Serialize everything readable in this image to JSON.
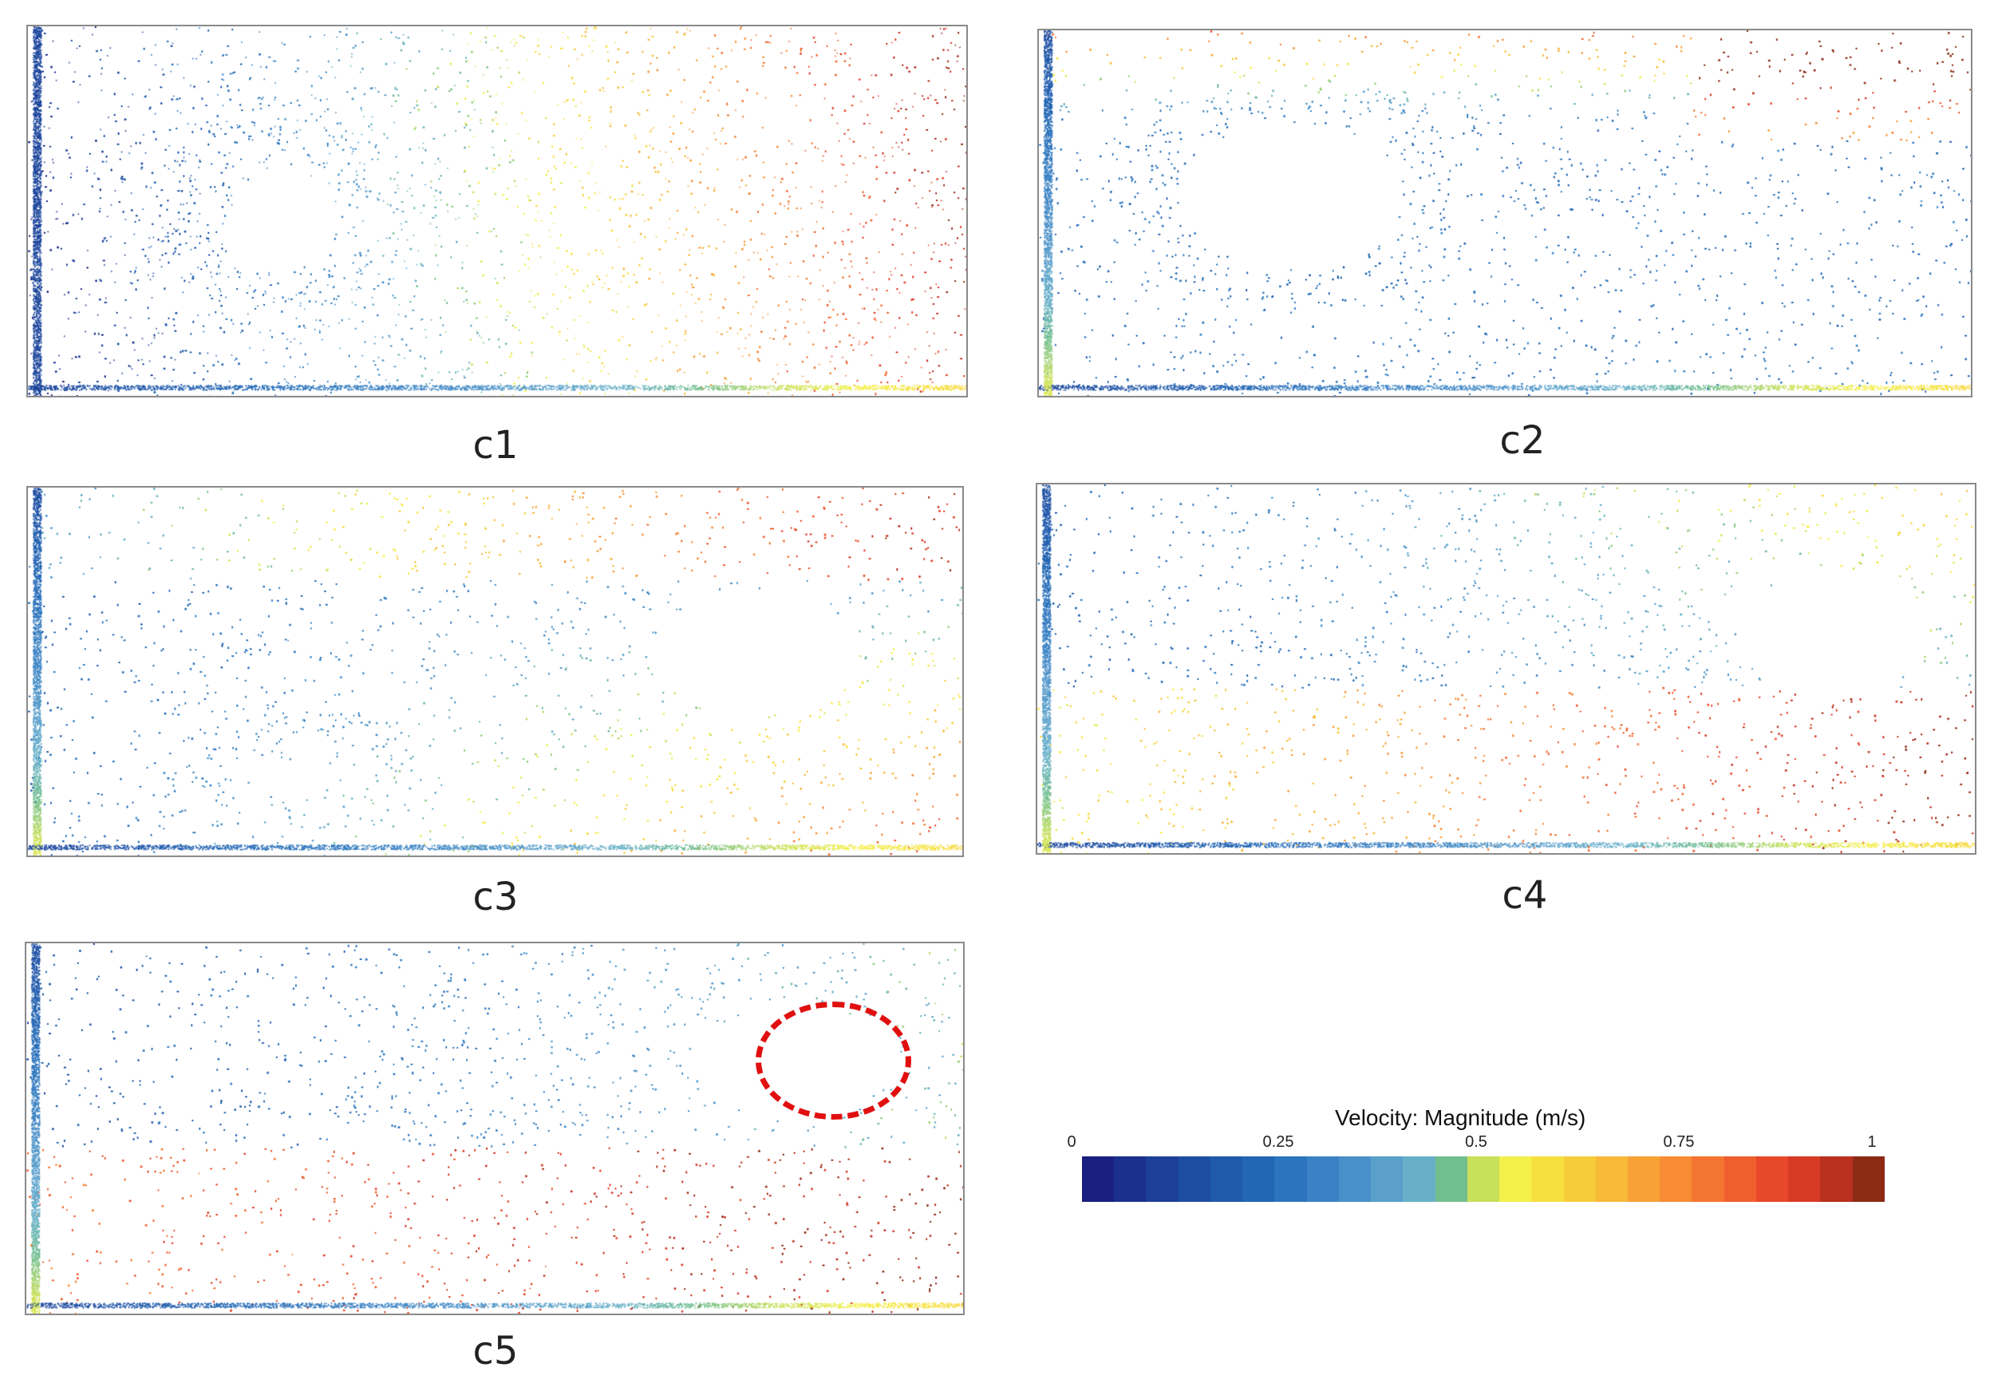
{
  "panels": [
    {
      "id": "c1",
      "caption": "c1"
    },
    {
      "id": "c2",
      "caption": "c2"
    },
    {
      "id": "c3",
      "caption": "c3"
    },
    {
      "id": "c4",
      "caption": "c4"
    },
    {
      "id": "c5",
      "caption": "c5"
    }
  ],
  "legend": {
    "title": "Velocity: Magnitude (m/s)",
    "ticks": [
      "0",
      "0.25",
      "0.5",
      "0.75",
      "1"
    ],
    "range": [
      0,
      1
    ],
    "colors": [
      "#1a1f80",
      "#1b2f8c",
      "#1c3f98",
      "#1d4da2",
      "#1f5aac",
      "#2266b4",
      "#2c74bd",
      "#3a82c4",
      "#4a90c8",
      "#5aa0cb",
      "#68b0c8",
      "#72bf8e",
      "#c8e05a",
      "#f3f04a",
      "#f6e03e",
      "#f6cc3a",
      "#f8b838",
      "#f8a236",
      "#f78c34",
      "#f47432",
      "#ef5e2e",
      "#e8482a",
      "#d63a24",
      "#b9301e",
      "#8c2a16"
    ]
  },
  "annotation": {
    "color": "#e01010",
    "style": "dashed-ellipse"
  }
}
